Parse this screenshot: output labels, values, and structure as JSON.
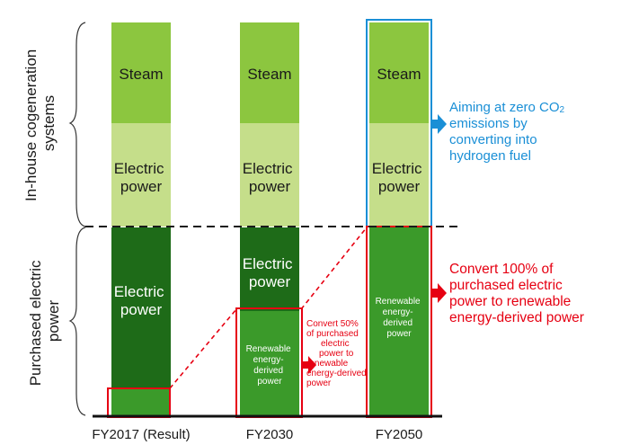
{
  "side_labels": {
    "upper": [
      "In-house cogeneration",
      "systems"
    ],
    "lower": [
      "Purchased electric",
      "power"
    ]
  },
  "columns": {
    "fy2017": {
      "xlabel": "FY2017 (Result)",
      "steam": "Steam",
      "cogen_power": [
        "Electric",
        "power"
      ],
      "purchased_power": [
        "Electric",
        "power"
      ]
    },
    "fy2030": {
      "xlabel": "FY2030",
      "steam": "Steam",
      "cogen_power": [
        "Electric",
        "power"
      ],
      "purchased_power": [
        "Electric",
        "power"
      ],
      "renewable": [
        "Renewable",
        "energy-",
        "derived",
        "power"
      ]
    },
    "fy2050": {
      "xlabel": "FY2050",
      "steam": "Steam",
      "cogen_power": [
        "Electric",
        "power"
      ],
      "renewable": [
        "Renewable",
        "energy-",
        "derived",
        "power"
      ]
    }
  },
  "notes": {
    "convert50": [
      "Convert 50%",
      "of purchased",
      "electric",
      "power to",
      "renewable",
      "energy-derived",
      "power"
    ],
    "convert100": [
      "Convert 100% of",
      "purchased electric",
      "power to renewable",
      "energy-derived power"
    ],
    "hydrogen": {
      "line1_prefix": "Aiming at zero CO",
      "line1_sub": "2",
      "lines": [
        "emissions by",
        "converting into",
        "hydrogen fuel"
      ]
    }
  },
  "colors": {
    "steam": "#8cc63f",
    "cogen_power": "#c5de8a",
    "purchased_dark": "#1e6b18",
    "renewable": "#3b9a2a",
    "red": "#e60012",
    "blue": "#1a8fd6"
  }
}
